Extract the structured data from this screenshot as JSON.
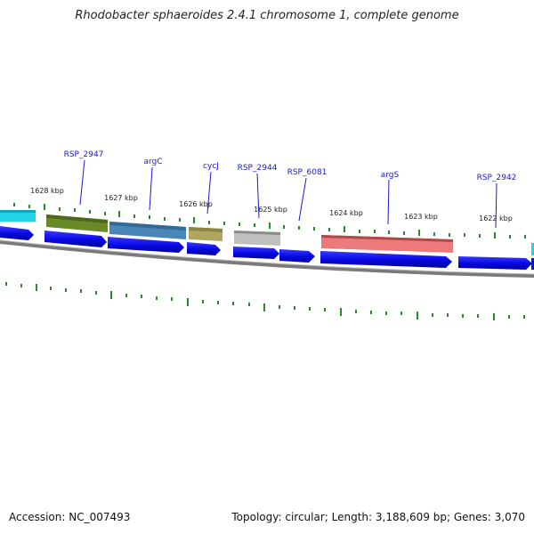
{
  "title": "Rhodobacter sphaeroides 2.4.1 chromosome 1, complete genome",
  "footer": {
    "accession": "Accession: NC_007493",
    "summary": "Topology: circular; Length: 3,188,609 bp; Genes: 3,070"
  },
  "colors": {
    "cds_arrow": "#0a0ae6",
    "backbone": "#777777",
    "tick": "#2a8a2a",
    "label": "#1a1ad0"
  },
  "gene_labels": [
    "RSP_2947",
    "argC",
    "cycJ",
    "RSP_2944",
    "RSP_6081",
    "argS",
    "RSP_2942"
  ],
  "kbp_labels": [
    "1628 kbp",
    "1627 kbp",
    "1626 kbp",
    "1625 kbp",
    "1624 kbp",
    "1623 kbp",
    "1622 kbp"
  ],
  "feature_colors": [
    "#22d3e6",
    "#6a8a2a",
    "#4a86b8",
    "#b0a660",
    "#b8b8b8",
    "#e86a6a",
    "#22d3e6"
  ]
}
